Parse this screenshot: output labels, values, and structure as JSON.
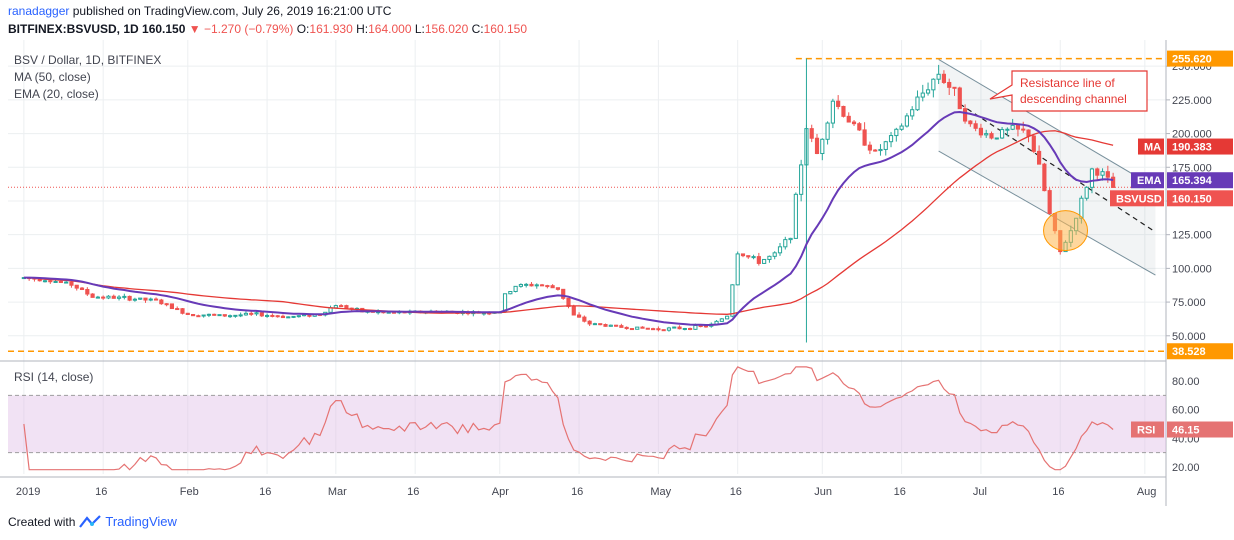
{
  "header": {
    "user": "ranadagger",
    "published": "published on TradingView.com, July 26, 2019 16:21:00 UTC",
    "symbol": "BITFINEX:BSVUSD, 1D",
    "last": "160.150",
    "change": "▼ −1.270 (−0.79%)",
    "ohlc_open_label": "O:",
    "ohlc_open": "161.930",
    "ohlc_high_label": "H:",
    "ohlc_high": "164.000",
    "ohlc_low_label": "L:",
    "ohlc_low": "156.020",
    "ohlc_close_label": "C:",
    "ohlc_close": "160.150"
  },
  "legend": {
    "title": "BSV / Dollar, 1D, BITFINEX",
    "ma": "MA (50, close)",
    "ema": "EMA (20, close)",
    "rsi": "RSI (14, close)"
  },
  "annotation": {
    "line1": "Resistance line of",
    "line2": "descending channel"
  },
  "tags": {
    "top_level": "255.620",
    "bottom_level": "38.528",
    "ma_label": "MA",
    "ma_value": "190.383",
    "ema_label": "EMA",
    "ema_value": "165.394",
    "sym_label": "BSVUSD",
    "sym_value": "160.150",
    "rsi_label": "RSI",
    "rsi_value": "46.15"
  },
  "footer": {
    "created": "Created with",
    "brand": "TradingView"
  },
  "colors": {
    "up": "#26a69a",
    "down": "#ef5350",
    "ma": "#e53935",
    "ema": "#673ab7",
    "level": "#ff9800",
    "rsi": "#e57373",
    "rsi_band": "#e1bee7",
    "channel": "#7f8c9a"
  },
  "chart_data": [
    {
      "type": "line",
      "title": "BSV / Dollar, 1D, BITFINEX",
      "price_axis_ticks": [
        "50.000",
        "75.000",
        "100.000",
        "125.000",
        "150.000",
        "175.000",
        "200.000",
        "225.000",
        "250.000"
      ],
      "time_axis_ticks": [
        "2019",
        "16",
        "Feb",
        "16",
        "Mar",
        "16",
        "Apr",
        "16",
        "May",
        "16",
        "Jun",
        "16",
        "Jul",
        "16",
        "Aug"
      ],
      "ylim": [
        35,
        262
      ],
      "grid": true,
      "price_close_path": [
        [
          "2019-01-01",
          93
        ],
        [
          "2019-01-05",
          92
        ],
        [
          "2019-01-10",
          88
        ],
        [
          "2019-01-14",
          79
        ],
        [
          "2019-01-20",
          78
        ],
        [
          "2019-01-26",
          76
        ],
        [
          "2019-02-01",
          66
        ],
        [
          "2019-02-08",
          65
        ],
        [
          "2019-02-14",
          66
        ],
        [
          "2019-02-20",
          64
        ],
        [
          "2019-02-26",
          66
        ],
        [
          "2019-03-01",
          73
        ],
        [
          "2019-03-06",
          68
        ],
        [
          "2019-03-12",
          67
        ],
        [
          "2019-03-20",
          68
        ],
        [
          "2019-03-28",
          67
        ],
        [
          "2019-04-01",
          68
        ],
        [
          "2019-04-02",
          80
        ],
        [
          "2019-04-04",
          87
        ],
        [
          "2019-04-08",
          88
        ],
        [
          "2019-04-12",
          85
        ],
        [
          "2019-04-15",
          65
        ],
        [
          "2019-04-18",
          59
        ],
        [
          "2019-04-25",
          56
        ],
        [
          "2019-05-01",
          55
        ],
        [
          "2019-05-07",
          56
        ],
        [
          "2019-05-11",
          58
        ],
        [
          "2019-05-14",
          65
        ],
        [
          "2019-05-16",
          112
        ],
        [
          "2019-05-20",
          105
        ],
        [
          "2019-05-23",
          110
        ],
        [
          "2019-05-26",
          125
        ],
        [
          "2019-05-29",
          205
        ],
        [
          "2019-05-31",
          185
        ],
        [
          "2019-06-03",
          225
        ],
        [
          "2019-06-07",
          205
        ],
        [
          "2019-06-11",
          185
        ],
        [
          "2019-06-15",
          200
        ],
        [
          "2019-06-19",
          225
        ],
        [
          "2019-06-23",
          245
        ],
        [
          "2019-06-26",
          230
        ],
        [
          "2019-06-29",
          205
        ],
        [
          "2019-07-03",
          198
        ],
        [
          "2019-07-07",
          203
        ],
        [
          "2019-07-10",
          200
        ],
        [
          "2019-07-12",
          175
        ],
        [
          "2019-07-14",
          140
        ],
        [
          "2019-07-16",
          112
        ],
        [
          "2019-07-18",
          128
        ],
        [
          "2019-07-20",
          150
        ],
        [
          "2019-07-22",
          173
        ],
        [
          "2019-07-24",
          170
        ],
        [
          "2019-07-26",
          160
        ]
      ]
    },
    {
      "type": "line",
      "title": "RSI (14, close)",
      "ylim": [
        15,
        92
      ],
      "axis_ticks": [
        "20.00",
        "40.00",
        "60.00",
        "80.00"
      ],
      "bands": [
        30,
        70
      ],
      "current": 46.15
    }
  ]
}
